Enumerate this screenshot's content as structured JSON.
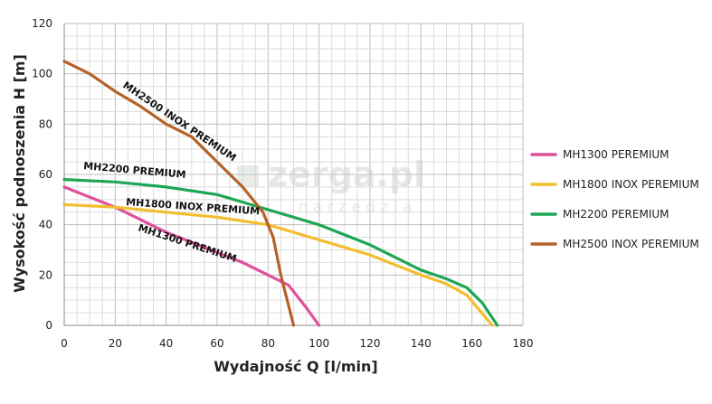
{
  "chart_data": {
    "type": "line",
    "xlabel": "Wydajność Q [l/min]",
    "ylabel": "Wysokość podnoszenia H [m]",
    "xlim": [
      0,
      180
    ],
    "ylim": [
      0,
      120
    ],
    "x_ticks": [
      "0",
      "20",
      "40",
      "60",
      "80",
      "100",
      "120",
      "140",
      "160",
      "180"
    ],
    "y_ticks": [
      "0",
      "20",
      "40",
      "60",
      "80",
      "100",
      "120"
    ],
    "grid": true,
    "legend_position": "right",
    "series": [
      {
        "name": "MH1300 PEREMIUM",
        "curve_label": "MH1300 PREMIUM",
        "color": "#e0509a",
        "points": [
          [
            0,
            55
          ],
          [
            10,
            51
          ],
          [
            20,
            47
          ],
          [
            30,
            42
          ],
          [
            40,
            37
          ],
          [
            50,
            33
          ],
          [
            60,
            29
          ],
          [
            70,
            25
          ],
          [
            80,
            20
          ],
          [
            88,
            16
          ],
          [
            95,
            7
          ],
          [
            100,
            0
          ]
        ]
      },
      {
        "name": "MH1800 INOX PEREMIUM",
        "curve_label": "MH1800 INOX PREMIUM",
        "color": "#f2be2e",
        "points": [
          [
            0,
            48
          ],
          [
            20,
            47
          ],
          [
            40,
            45
          ],
          [
            60,
            43
          ],
          [
            80,
            40
          ],
          [
            100,
            34
          ],
          [
            120,
            28
          ],
          [
            140,
            20
          ],
          [
            150,
            16.5
          ],
          [
            158,
            12
          ],
          [
            163,
            6
          ],
          [
            168,
            0
          ]
        ]
      },
      {
        "name": "MH2200 PEREMIUM",
        "curve_label": "MH2200 PREMIUM",
        "color": "#1ea655",
        "points": [
          [
            0,
            58
          ],
          [
            20,
            57
          ],
          [
            40,
            55
          ],
          [
            60,
            52
          ],
          [
            70,
            49
          ],
          [
            80,
            46
          ],
          [
            100,
            40
          ],
          [
            120,
            32
          ],
          [
            140,
            22
          ],
          [
            150,
            18.5
          ],
          [
            158,
            15
          ],
          [
            164,
            9
          ],
          [
            170,
            0
          ]
        ]
      },
      {
        "name": "MH2500 INOX PEREMIUM",
        "curve_label": "MH2500 INOX PREMIUM",
        "color": "#b5622a",
        "points": [
          [
            0,
            105
          ],
          [
            10,
            100
          ],
          [
            20,
            93
          ],
          [
            30,
            87
          ],
          [
            40,
            80
          ],
          [
            50,
            75
          ],
          [
            60,
            65
          ],
          [
            70,
            55
          ],
          [
            78,
            45
          ],
          [
            82,
            35
          ],
          [
            85,
            20
          ],
          [
            88,
            8
          ],
          [
            90,
            0
          ]
        ]
      }
    ]
  },
  "watermark": {
    "main": "zerga.pl",
    "sub": "narzedzia"
  }
}
